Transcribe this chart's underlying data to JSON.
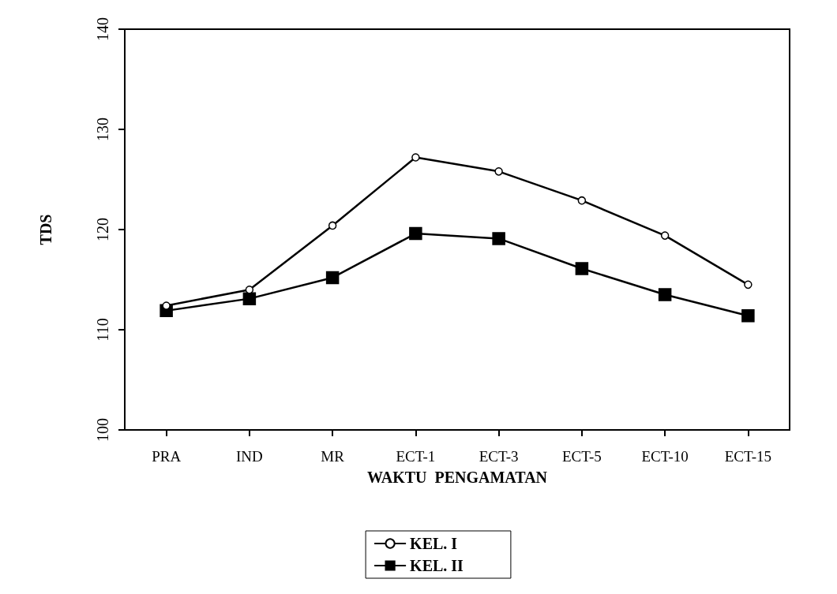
{
  "chart_data": {
    "type": "line",
    "xlabel": "WAKTU  PENGAMATAN",
    "ylabel": "TDS",
    "categories": [
      "PRA",
      "IND",
      "MR",
      "ECT-1",
      "ECT-3",
      "ECT-5",
      "ECT-10",
      "ECT-15"
    ],
    "series": [
      {
        "name": "KEL. I",
        "color": "#000000",
        "marker": "circle",
        "values": [
          112.4,
          114.0,
          120.4,
          127.2,
          125.8,
          122.9,
          119.4,
          114.5
        ]
      },
      {
        "name": "KEL. II",
        "color": "#000000",
        "marker": "square",
        "values": [
          111.9,
          113.1,
          115.2,
          119.6,
          119.1,
          116.1,
          113.5,
          111.4
        ]
      }
    ],
    "ylim": [
      100,
      140
    ],
    "yticks": [
      100,
      110,
      120,
      130,
      140
    ],
    "grid": false,
    "legend": "bottom",
    "line_style": "solid"
  }
}
